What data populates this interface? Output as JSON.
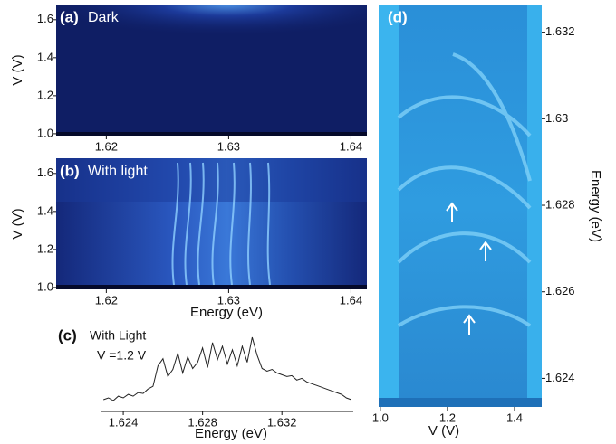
{
  "chart_data": [
    {
      "type": "heatmap",
      "label": "(a)",
      "title": "Dark",
      "y_label": "V (V)",
      "xlim": [
        1.6159,
        1.6413
      ],
      "xticks": [
        1.62,
        1.63,
        1.64
      ],
      "ylim": [
        0.99,
        1.68
      ],
      "yticks": [
        {
          "value": 1,
          "label": "1.0"
        },
        1.2,
        1.4,
        1.6
      ]
    },
    {
      "type": "heatmap",
      "label": "(b)",
      "title": "With light",
      "y_label": "V (V)",
      "x_label": "Energy (eV)",
      "xlim": [
        1.6159,
        1.6413
      ],
      "xticks": [
        1.62,
        1.63,
        1.64
      ],
      "ylim": [
        0.99,
        1.68
      ],
      "yticks": [
        {
          "value": 1,
          "label": "1.0"
        },
        1.2,
        1.4,
        1.6
      ]
    },
    {
      "type": "line",
      "label": "(c)",
      "title": "With Light",
      "subtitle": "V =1.2 V",
      "x_label": "Energy (eV)",
      "xlim": [
        1.6229,
        1.6356
      ],
      "xticks": [
        1.624,
        1.628,
        1.632
      ],
      "color": "#222222",
      "x": [
        1.623,
        1.62325,
        1.6235,
        1.62375,
        1.624,
        1.62425,
        1.6245,
        1.62475,
        1.625,
        1.62525,
        1.6255,
        1.62575,
        1.626,
        1.62625,
        1.6265,
        1.62675,
        1.627,
        1.62725,
        1.6275,
        1.62775,
        1.628,
        1.62825,
        1.6285,
        1.62875,
        1.629,
        1.62925,
        1.6295,
        1.62975,
        1.63,
        1.63025,
        1.6305,
        1.63075,
        1.631,
        1.63125,
        1.6315,
        1.63175,
        1.632,
        1.63225,
        1.6325,
        1.63275,
        1.633,
        1.63325,
        1.6335,
        1.63375,
        1.634,
        1.63425,
        1.6345,
        1.63475,
        1.635,
        1.63525,
        1.6355
      ],
      "values": [
        10,
        12,
        9,
        14,
        12,
        16,
        14,
        18,
        17,
        22,
        25,
        48,
        56,
        36,
        44,
        62,
        40,
        58,
        45,
        52,
        68,
        46,
        74,
        55,
        70,
        50,
        66,
        48,
        70,
        52,
        80,
        60,
        45,
        42,
        44,
        40,
        38,
        36,
        37,
        32,
        34,
        30,
        28,
        26,
        24,
        22,
        20,
        18,
        16,
        12,
        10
      ]
    },
    {
      "type": "heatmap",
      "label": "(d)",
      "x_label": "V (V)",
      "y_label": "Energy (eV)",
      "xlim": [
        0.995,
        1.481
      ],
      "xticks": [
        {
          "value": 1,
          "label": "1.0"
        },
        1.2,
        1.4
      ],
      "ylim": [
        1.62334,
        1.63264
      ],
      "yticks": [
        1.624,
        1.626,
        1.628,
        1.63,
        1.632
      ]
    }
  ]
}
